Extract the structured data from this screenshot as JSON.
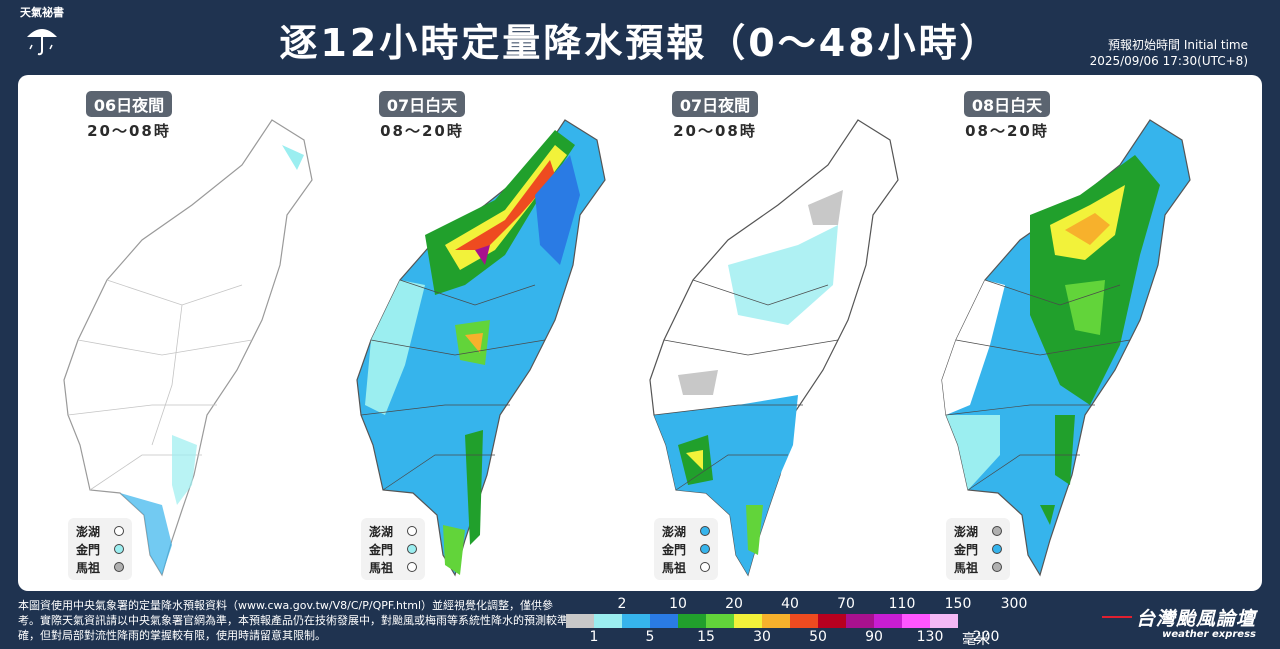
{
  "header": {
    "logo_text": "天氣祕書",
    "title": "逐12小時定量降水預報（0～48小時）",
    "init_label": "預報初始時間 Initial time",
    "init_time": "2025/09/06  17:30(UTC+8)"
  },
  "panels": [
    {
      "tag": "06日夜間",
      "time": "20～08時",
      "islands": [
        {
          "name": "澎湖",
          "color": "#ffffff"
        },
        {
          "name": "金門",
          "color": "#9beef0"
        },
        {
          "name": "馬祖",
          "color": "#b0b0b0"
        }
      ]
    },
    {
      "tag": "07日白天",
      "time": "08～20時",
      "islands": [
        {
          "name": "澎湖",
          "color": "#ffffff"
        },
        {
          "name": "金門",
          "color": "#9beef0"
        },
        {
          "name": "馬祖",
          "color": "#ffffff"
        }
      ]
    },
    {
      "tag": "07日夜間",
      "time": "20～08時",
      "islands": [
        {
          "name": "澎湖",
          "color": "#36b4ec"
        },
        {
          "name": "金門",
          "color": "#36b4ec"
        },
        {
          "name": "馬祖",
          "color": "#ffffff"
        }
      ]
    },
    {
      "tag": "08日白天",
      "time": "08～20時",
      "islands": [
        {
          "name": "澎湖",
          "color": "#b0b0b0"
        },
        {
          "name": "金門",
          "color": "#36b4ec"
        },
        {
          "name": "馬祖",
          "color": "#b0b0b0"
        }
      ]
    }
  ],
  "footer": {
    "note": "本圖資使用中央氣象署的定量降水預報資料（www.cwa.gov.tw/V8/C/P/QPF.html）並經視覺化調整，僅供參考。實際天氣資訊請以中央氣象署官網為準，本預報產品仍在技術發展中，對颱風或梅雨等系統性降水的預測較準確，但對局部對流性降雨的掌握較有限，使用時請留意其限制。",
    "scale_top": [
      "2",
      "10",
      "20",
      "40",
      "70",
      "110",
      "150",
      "300"
    ],
    "scale_bottom": [
      "1",
      "5",
      "15",
      "30",
      "50",
      "90",
      "130",
      "200"
    ],
    "scale_colors": [
      "#c8c8c8",
      "#9beef0",
      "#36b4ec",
      "#2a7be4",
      "#21a02c",
      "#62d43a",
      "#f2f23a",
      "#f7b12c",
      "#ee4b20",
      "#b8001f",
      "#a8118e",
      "#c81ed2",
      "#ff56ff",
      "#f5b9f5"
    ],
    "unit": "毫米",
    "brand_name": "台灣颱風論壇",
    "brand_sub": "weather express"
  }
}
